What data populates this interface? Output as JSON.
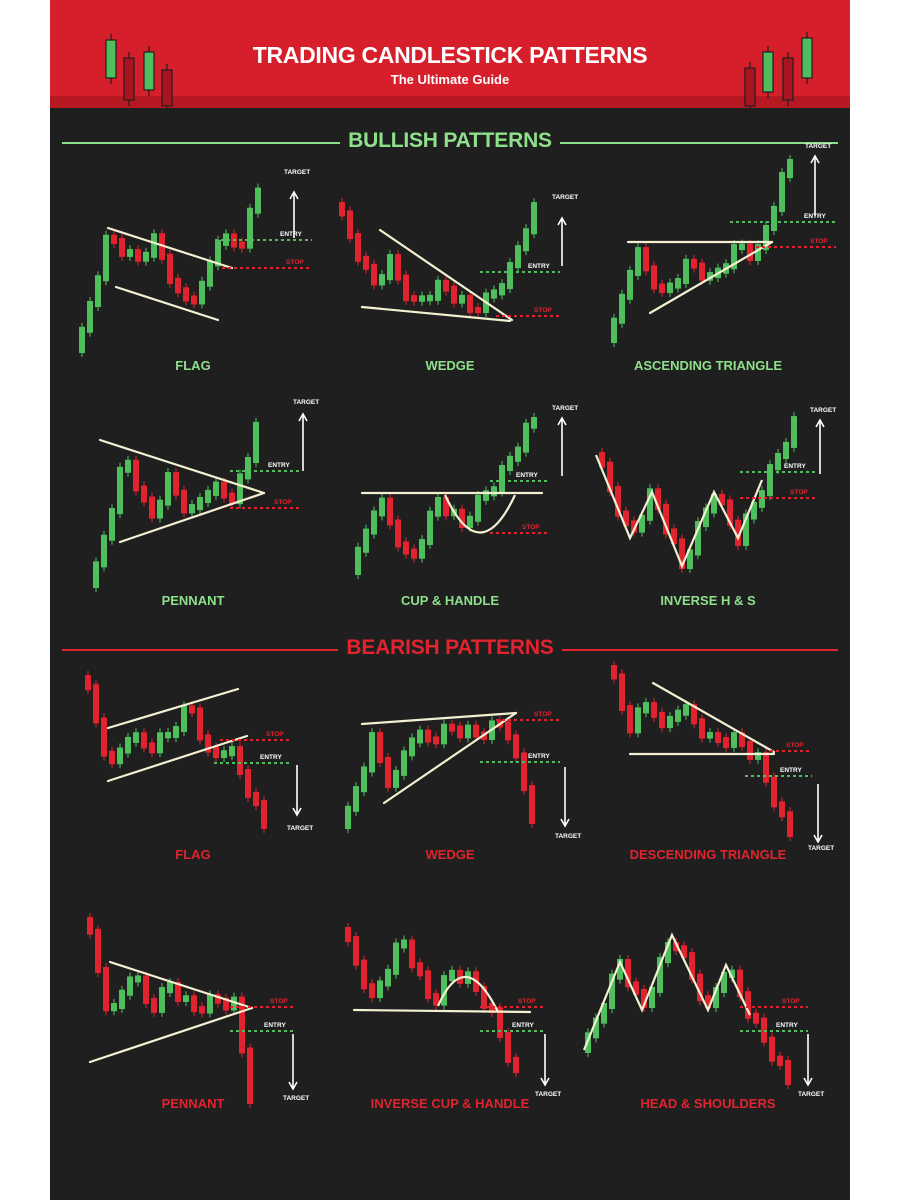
{
  "header": {
    "title": "TRADING CANDLESTICK PATTERNS",
    "subtitle": "The Ultimate Guide"
  },
  "sections": {
    "bullish": "BULLISH PATTERNS",
    "bearish": "BEARISH PATTERNS"
  },
  "markers": {
    "target": "TARGET",
    "entry": "ENTRY",
    "stop": "STOP"
  },
  "bullish_patterns": [
    "FLAG",
    "WEDGE",
    "ASCENDING TRIANGLE",
    "PENNANT",
    "CUP & HANDLE",
    "INVERSE H & S"
  ],
  "bearish_patterns": [
    "FLAG",
    "WEDGE",
    "DESCENDING TRIANGLE",
    "PENNANT",
    "INVERSE CUP & HANDLE",
    "HEAD & SHOULDERS"
  ],
  "colors": {
    "bull": "#4fbf5d",
    "bear": "#e0232e",
    "bull_text": "#8fe08b",
    "header": "#d71f2b",
    "background": "#1f1f1f",
    "line": "#f3f0d2"
  }
}
